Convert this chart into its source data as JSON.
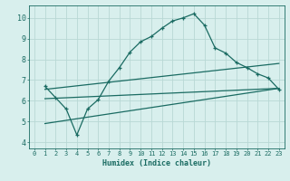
{
  "xlabel": "Humidex (Indice chaleur)",
  "bg_color": "#d8efed",
  "grid_color": "#b8d8d5",
  "line_color": "#1a6b62",
  "xlim": [
    -0.5,
    23.5
  ],
  "ylim": [
    3.7,
    10.6
  ],
  "xticks": [
    0,
    1,
    2,
    3,
    4,
    5,
    6,
    7,
    8,
    9,
    10,
    11,
    12,
    13,
    14,
    15,
    16,
    17,
    18,
    19,
    20,
    21,
    22,
    23
  ],
  "yticks": [
    4,
    5,
    6,
    7,
    8,
    9,
    10
  ],
  "curve1_x": [
    1,
    2,
    3,
    4,
    5,
    6,
    7,
    8,
    9,
    10,
    11,
    12,
    13,
    14,
    15,
    16,
    17,
    18,
    19,
    20,
    21,
    22,
    23
  ],
  "curve1_y": [
    6.7,
    6.15,
    5.6,
    4.35,
    5.6,
    6.05,
    6.95,
    7.6,
    8.35,
    8.85,
    9.1,
    9.5,
    9.85,
    10.0,
    10.2,
    9.65,
    8.55,
    8.3,
    7.85,
    7.6,
    7.3,
    7.1,
    6.55
  ],
  "line2_x": [
    1,
    23
  ],
  "line2_y": [
    6.55,
    7.8
  ],
  "line3_x": [
    1,
    23
  ],
  "line3_y": [
    6.1,
    6.6
  ],
  "line4_x": [
    1,
    23
  ],
  "line4_y": [
    4.9,
    6.6
  ]
}
